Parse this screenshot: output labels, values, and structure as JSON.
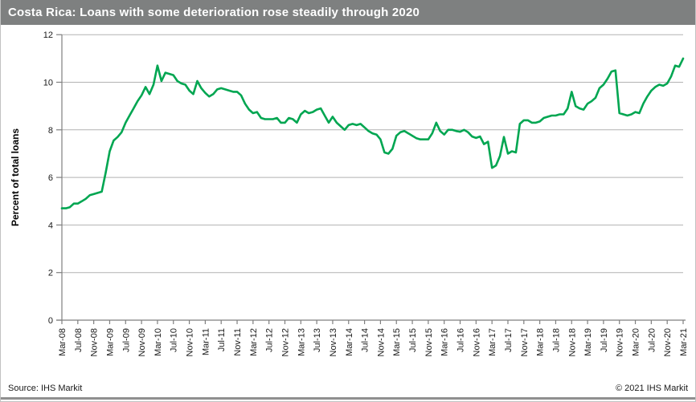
{
  "header": {
    "title": "Costa Rica: Loans with some deterioration rose steadily through 2020",
    "bg_color": "#7e8080",
    "text_color": "#ffffff"
  },
  "chart_data": {
    "type": "line",
    "title": "Costa Rica: Loans with some deterioration rose steadily through 2020",
    "xlabel": "",
    "ylabel": "Percent of total loans",
    "ylim": [
      0,
      12
    ],
    "yticks": [
      0,
      2,
      4,
      6,
      8,
      10,
      12
    ],
    "grid": "horizontal",
    "legend": "none",
    "grid_color": "#b2b2b2",
    "axis_color": "#7f7f7f",
    "x_start": "Mar-08",
    "x_end": "Mar-21",
    "frequency": "monthly",
    "x_tick_interval_months": 4,
    "x_tick_labels": [
      "Mar-08",
      "Jul-08",
      "Nov-08",
      "Mar-09",
      "Jul-09",
      "Nov-09",
      "Mar-10",
      "Jul-10",
      "Nov-10",
      "Mar-11",
      "Jul-11",
      "Nov-11",
      "Mar-12",
      "Jul-12",
      "Nov-12",
      "Mar-13",
      "Jul-13",
      "Nov-13",
      "Mar-14",
      "Jul-14",
      "Nov-14",
      "Mar-15",
      "Jul-15",
      "Nov-15",
      "Mar-16",
      "Jul-16",
      "Nov-16",
      "Mar-17",
      "Jul-17",
      "Nov-17",
      "Mar-18",
      "Jul-18",
      "Nov-18",
      "Mar-19",
      "Jul-19",
      "Nov-19",
      "Mar-20",
      "Jul-20",
      "Nov-20",
      "Mar-21"
    ],
    "series": [
      {
        "name": "Loans with some deterioration",
        "color": "#00a651",
        "values": [
          4.7,
          4.7,
          4.75,
          4.9,
          4.9,
          5.0,
          5.1,
          5.25,
          5.3,
          5.35,
          5.4,
          6.2,
          7.1,
          7.55,
          7.7,
          7.9,
          8.3,
          8.6,
          8.9,
          9.2,
          9.45,
          9.8,
          9.5,
          9.9,
          10.7,
          10.05,
          10.4,
          10.35,
          10.3,
          10.05,
          9.95,
          9.9,
          9.65,
          9.5,
          10.05,
          9.75,
          9.55,
          9.4,
          9.5,
          9.7,
          9.75,
          9.7,
          9.65,
          9.6,
          9.6,
          9.45,
          9.1,
          8.85,
          8.7,
          8.75,
          8.5,
          8.45,
          8.45,
          8.45,
          8.5,
          8.3,
          8.3,
          8.5,
          8.45,
          8.3,
          8.65,
          8.8,
          8.7,
          8.75,
          8.85,
          8.9,
          8.6,
          8.3,
          8.55,
          8.3,
          8.15,
          8.0,
          8.2,
          8.25,
          8.2,
          8.25,
          8.1,
          7.95,
          7.85,
          7.8,
          7.6,
          7.05,
          7.0,
          7.2,
          7.75,
          7.9,
          7.95,
          7.85,
          7.75,
          7.65,
          7.6,
          7.6,
          7.6,
          7.85,
          8.3,
          7.95,
          7.8,
          8.0,
          8.0,
          7.95,
          7.92,
          8.0,
          7.9,
          7.72,
          7.66,
          7.72,
          7.4,
          7.5,
          6.4,
          6.5,
          6.9,
          7.7,
          7.0,
          7.1,
          7.05,
          8.25,
          8.4,
          8.4,
          8.3,
          8.3,
          8.35,
          8.5,
          8.55,
          8.6,
          8.6,
          8.65,
          8.65,
          8.9,
          9.6,
          9.0,
          8.9,
          8.85,
          9.1,
          9.2,
          9.35,
          9.75,
          9.9,
          10.15,
          10.45,
          10.5,
          8.7,
          8.65,
          8.6,
          8.65,
          8.75,
          8.7,
          9.1,
          9.4,
          9.65,
          9.8,
          9.9,
          9.85,
          9.95,
          10.25,
          10.7,
          10.65,
          11.0
        ]
      }
    ]
  },
  "footer": {
    "source": "Source: IHS Markit",
    "copyright": "© 2021 IHS Markit"
  }
}
